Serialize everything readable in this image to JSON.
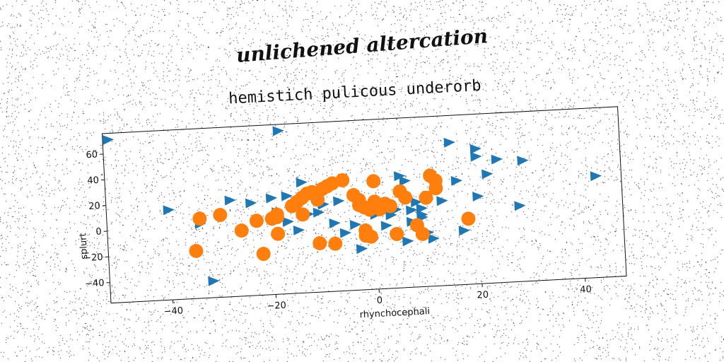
{
  "banner": "unlichened altercation",
  "chart_data": {
    "type": "scatter",
    "title": "hemistich pulicous underorb",
    "xlabel": "rhynchocephali",
    "ylabel": "splurt",
    "xlim": [
      -52,
      48
    ],
    "ylim": [
      -56,
      76
    ],
    "xticks": [
      -40,
      -20,
      0,
      20,
      40
    ],
    "yticks": [
      -40,
      -20,
      0,
      20,
      40,
      60
    ],
    "grid": false,
    "legend": "none",
    "series": [
      {
        "marker": "triangle-right",
        "color": "#1f77b4",
        "points": [
          [
            -51,
            71
          ],
          [
            -18,
            71
          ],
          [
            -40,
            14
          ],
          [
            -28,
            19
          ],
          [
            -24,
            16
          ],
          [
            -20,
            19
          ],
          [
            -17,
            20
          ],
          [
            -14,
            30
          ],
          [
            -10,
            12
          ],
          [
            -7,
            14
          ],
          [
            -19,
            8
          ],
          [
            -17,
            0
          ],
          [
            -15,
            -7
          ],
          [
            -13,
            5
          ],
          [
            -11,
            6
          ],
          [
            -8,
            -3
          ],
          [
            -6,
            -11
          ],
          [
            -4,
            -5
          ],
          [
            -3,
            -24
          ],
          [
            -2,
            9
          ],
          [
            0,
            2
          ],
          [
            3,
            1
          ],
          [
            4,
            5
          ],
          [
            5,
            31
          ],
          [
            6,
            27
          ],
          [
            7,
            4
          ],
          [
            7,
            -5
          ],
          [
            8,
            10
          ],
          [
            9,
            5
          ],
          [
            9,
            -2
          ],
          [
            9,
            0
          ],
          [
            10,
            -14
          ],
          [
            11,
            -19
          ],
          [
            12,
            28
          ],
          [
            13,
            10
          ],
          [
            15,
            55
          ],
          [
            16,
            25
          ],
          [
            17,
            -14
          ],
          [
            20,
            12
          ],
          [
            20,
            49
          ],
          [
            20,
            43
          ],
          [
            22,
            29
          ],
          [
            24,
            40
          ],
          [
            28,
            3
          ],
          [
            29,
            38
          ],
          [
            43,
            23
          ],
          [
            -34,
            2
          ],
          [
            -32,
            -43
          ],
          [
            6,
            -20
          ],
          [
            2,
            -7
          ]
        ]
      },
      {
        "marker": "circle",
        "color": "#ff7f0e",
        "points": [
          [
            -35,
            -19
          ],
          [
            -34,
            6
          ],
          [
            -30,
            8
          ],
          [
            -26,
            -5
          ],
          [
            -23,
            2
          ],
          [
            -22,
            -24
          ],
          [
            -20,
            3
          ],
          [
            -19,
            4
          ],
          [
            -19,
            6
          ],
          [
            -19,
            -9
          ],
          [
            -16,
            12
          ],
          [
            -15,
            15
          ],
          [
            -14,
            18
          ],
          [
            -14,
            5
          ],
          [
            -13,
            21
          ],
          [
            -12,
            22
          ],
          [
            -11,
            16
          ],
          [
            -11,
            -18
          ],
          [
            -10,
            24
          ],
          [
            -9,
            26
          ],
          [
            -8,
            28
          ],
          [
            -8,
            -19
          ],
          [
            -6,
            30
          ],
          [
            -4,
            18
          ],
          [
            -3,
            14
          ],
          [
            -3,
            10
          ],
          [
            -2,
            8
          ],
          [
            -2,
            -10
          ],
          [
            -2,
            -14
          ],
          [
            -1,
            6
          ],
          [
            -1,
            -15
          ],
          [
            0,
            12
          ],
          [
            0,
            28
          ],
          [
            1,
            6
          ],
          [
            2,
            10
          ],
          [
            3,
            8
          ],
          [
            4,
            -14
          ],
          [
            5,
            19
          ],
          [
            6,
            14
          ],
          [
            8,
            -8
          ],
          [
            9,
            -15
          ],
          [
            10,
            13
          ],
          [
            11,
            30
          ],
          [
            12,
            26
          ],
          [
            12,
            20
          ],
          [
            18,
            -5
          ]
        ]
      }
    ]
  }
}
